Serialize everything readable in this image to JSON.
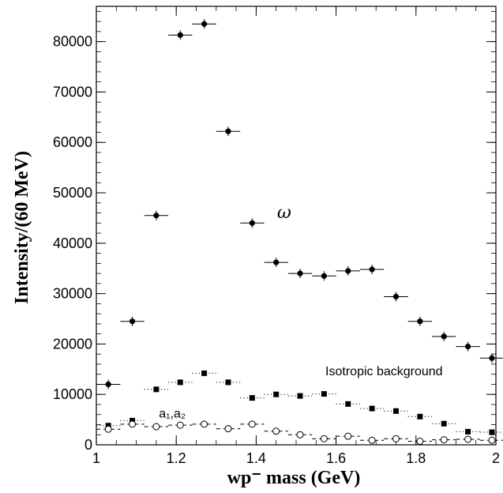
{
  "chart_data": {
    "type": "scatter",
    "xlabel": "wp⁻ mass (GeV)",
    "ylabel": "Intensity/(60 MeV)",
    "xlim": [
      1,
      2
    ],
    "ylim": [
      0,
      87000
    ],
    "xticks": [
      "1",
      "1.2",
      "1.4",
      "1.6",
      "1.8",
      "2"
    ],
    "yticks": [
      "0",
      "10000",
      "20000",
      "30000",
      "40000",
      "50000",
      "60000",
      "70000",
      "80000"
    ],
    "bin_width": 0.06,
    "grid": false,
    "series": [
      {
        "name": "ω",
        "marker": "filled-circle",
        "line": "none",
        "x": [
          1.03,
          1.09,
          1.15,
          1.21,
          1.27,
          1.33,
          1.39,
          1.45,
          1.51,
          1.57,
          1.63,
          1.69,
          1.75,
          1.81,
          1.87,
          1.93,
          1.99
        ],
        "y": [
          12000,
          24500,
          45500,
          81300,
          83500,
          62200,
          44000,
          36200,
          34000,
          33500,
          34500,
          34800,
          29400,
          24500,
          21500,
          19500,
          17200
        ]
      },
      {
        "name": "Isotropic background",
        "marker": "filled-square",
        "line": "dotted",
        "x": [
          1.03,
          1.09,
          1.15,
          1.21,
          1.27,
          1.33,
          1.39,
          1.45,
          1.51,
          1.57,
          1.63,
          1.69,
          1.75,
          1.81,
          1.87,
          1.93,
          1.99
        ],
        "y": [
          3800,
          4800,
          11000,
          12400,
          14200,
          12400,
          9300,
          10000,
          9700,
          10100,
          8100,
          7200,
          6700,
          5600,
          4200,
          2600,
          2500
        ]
      },
      {
        "name": "a₁,a₂",
        "marker": "open-circle",
        "line": "dashed",
        "x": [
          1.03,
          1.09,
          1.15,
          1.21,
          1.27,
          1.33,
          1.39,
          1.45,
          1.51,
          1.57,
          1.63,
          1.69,
          1.75,
          1.81,
          1.87,
          1.93,
          1.99
        ],
        "y": [
          3100,
          4100,
          3600,
          3900,
          4100,
          3200,
          4100,
          2700,
          2000,
          1200,
          1700,
          900,
          1200,
          700,
          1000,
          1100,
          900
        ]
      }
    ],
    "annotations": [
      {
        "text": "ω",
        "x": 1.47,
        "y": 45000
      },
      {
        "text": "Isotropic background",
        "x": 1.72,
        "y": 13800
      },
      {
        "text": "a₁,a₂",
        "x": 1.19,
        "y": 5400
      }
    ]
  }
}
